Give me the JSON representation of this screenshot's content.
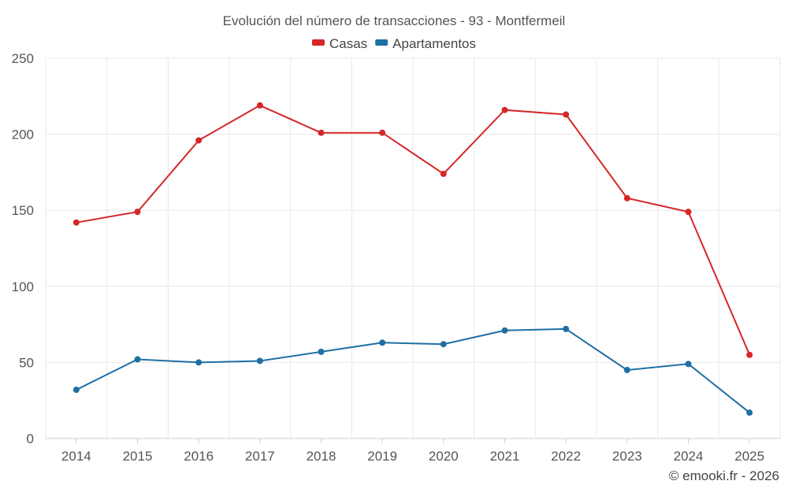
{
  "chart_data": {
    "type": "line",
    "title": "Evolución del número de transacciones - 93 - Montfermeil",
    "categories": [
      "2014",
      "2015",
      "2016",
      "2017",
      "2018",
      "2019",
      "2020",
      "2021",
      "2022",
      "2023",
      "2024",
      "2025"
    ],
    "series": [
      {
        "name": "Casas",
        "color": "#d62728",
        "values": [
          142,
          149,
          196,
          219,
          201,
          201,
          174,
          216,
          213,
          158,
          149,
          55
        ]
      },
      {
        "name": "Apartamentos",
        "color": "#1f6fa3",
        "values": [
          32,
          52,
          50,
          51,
          57,
          63,
          62,
          71,
          72,
          45,
          49,
          17
        ]
      }
    ],
    "ylim": [
      0,
      250
    ],
    "yticks": [
      0,
      50,
      100,
      150,
      200,
      250
    ],
    "grid": true,
    "legend": "top-center",
    "xlabel": "",
    "ylabel": ""
  },
  "credit": "© emooki.fr - 2026"
}
